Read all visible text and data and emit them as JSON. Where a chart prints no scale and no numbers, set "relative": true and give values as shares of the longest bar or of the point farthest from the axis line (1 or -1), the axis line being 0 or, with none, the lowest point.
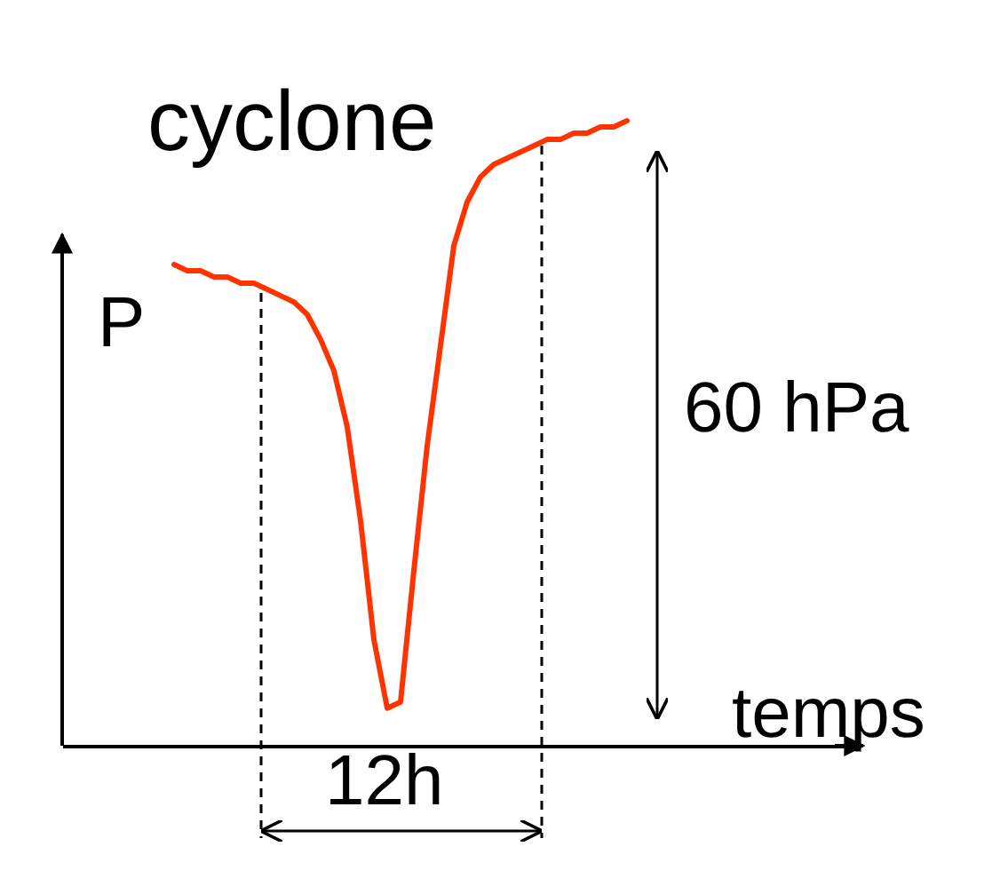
{
  "chart_data": {
    "type": "line",
    "title": "cyclone",
    "xlabel": "temps",
    "ylabel": "P",
    "annotations": [
      "60 hPa",
      "12h"
    ],
    "relative": true,
    "color": "#ff3300",
    "categories": [
      null,
      null,
      null,
      null,
      null,
      null,
      null,
      null,
      null,
      null,
      null,
      null,
      null,
      null,
      null,
      null,
      null,
      null,
      null,
      null,
      null,
      null,
      null,
      null,
      null,
      null,
      null,
      null,
      null,
      null,
      null,
      null,
      null,
      null,
      null
    ],
    "values": [
      0.77,
      0.76,
      0.76,
      0.75,
      0.75,
      0.74,
      0.74,
      0.73,
      0.72,
      0.71,
      0.69,
      0.65,
      0.6,
      0.51,
      0.36,
      0.17,
      0.06,
      0.07,
      0.28,
      0.48,
      0.64,
      0.8,
      0.87,
      0.91,
      0.93,
      0.94,
      0.95,
      0.96,
      0.97,
      0.97,
      0.98,
      0.98,
      0.99,
      0.99,
      1
    ]
  }
}
